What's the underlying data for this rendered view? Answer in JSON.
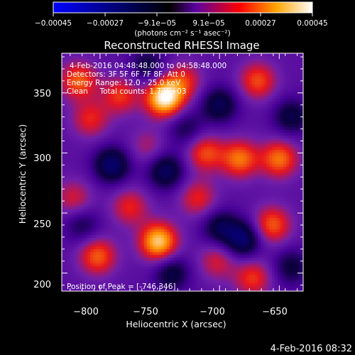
{
  "chart_data": {
    "type": "heatmap",
    "title": "Reconstructed RHESSI Image",
    "xlabel": "Heliocentric X (arcsec)",
    "ylabel": "Heliocentric Y (arcsec)",
    "xlim": [
      -832,
      -630
    ],
    "ylim": [
      185,
      383
    ],
    "x_ticks": [
      -800,
      -750,
      -700,
      -650
    ],
    "y_ticks": [
      200,
      250,
      300,
      350
    ],
    "x_tick_labels": [
      "−800",
      "−750",
      "−700",
      "−650"
    ],
    "y_tick_labels": [
      "200",
      "250",
      "300",
      "350"
    ],
    "colorbar": {
      "range": [
        -0.00045,
        0.00045
      ],
      "tick_labels": [
        "−0.00045",
        "−0.00027",
        "−9.1e−05",
        "9.1e−05",
        "0.00027",
        "0.00045"
      ],
      "tick_values": [
        -0.00045,
        -0.00027,
        -9.1e-05,
        9.1e-05,
        0.00027,
        0.00045
      ],
      "unit_label": "(photons cm⁻² s⁻¹ asec⁻²)",
      "colors": [
        "#0000ff",
        "#000000",
        "#5a00a0",
        "#ff0000",
        "#ffa500",
        "#ffffff"
      ]
    },
    "annotations": {
      "time_range": "4-Feb-2016 04:48:48.000 to 04:58:48.000",
      "detectors": "Detectors: 3F 5F 6F 7F 8F, Att 0",
      "energy": "Energy Range: 12.0 - 25.0 keV",
      "clean": "Clean     Total counts: 1.73E+03",
      "peak": "Position of Peak = [-746,346]"
    },
    "sources": [
      {
        "x": -746,
        "y": 346,
        "amp": 1.0
      },
      {
        "x": -751,
        "y": 226,
        "amp": 0.85
      },
      {
        "x": -802,
        "y": 214,
        "amp": 0.55
      },
      {
        "x": -818,
        "y": 360,
        "amp": 0.55
      },
      {
        "x": -808,
        "y": 328,
        "amp": 0.4
      },
      {
        "x": -783,
        "y": 348,
        "amp": 0.45
      },
      {
        "x": -730,
        "y": 360,
        "amp": 0.4
      },
      {
        "x": -712,
        "y": 300,
        "amp": 0.5
      },
      {
        "x": -683,
        "y": 295,
        "amp": 0.6
      },
      {
        "x": -650,
        "y": 295,
        "amp": 0.6
      },
      {
        "x": -668,
        "y": 360,
        "amp": 0.5
      },
      {
        "x": -656,
        "y": 240,
        "amp": 0.55
      },
      {
        "x": -718,
        "y": 262,
        "amp": 0.4
      },
      {
        "x": -702,
        "y": 210,
        "amp": 0.35
      },
      {
        "x": -672,
        "y": 196,
        "amp": 0.45
      },
      {
        "x": -822,
        "y": 262,
        "amp": 0.35
      },
      {
        "x": -775,
        "y": 255,
        "amp": 0.4
      },
      {
        "x": -760,
        "y": 305,
        "amp": 0.25
      },
      {
        "x": -790,
        "y": 290,
        "amp": -0.55
      },
      {
        "x": -745,
        "y": 285,
        "amp": -0.5
      },
      {
        "x": -740,
        "y": 200,
        "amp": -0.4
      },
      {
        "x": -700,
        "y": 340,
        "amp": -0.45
      },
      {
        "x": -700,
        "y": 238,
        "amp": -0.4
      },
      {
        "x": -680,
        "y": 228,
        "amp": -0.55
      },
      {
        "x": -640,
        "y": 330,
        "amp": -0.4
      },
      {
        "x": -760,
        "y": 372,
        "amp": -0.35
      },
      {
        "x": -815,
        "y": 240,
        "amp": -0.3
      },
      {
        "x": -640,
        "y": 205,
        "amp": -0.35
      },
      {
        "x": -728,
        "y": 320,
        "amp": -0.3
      }
    ]
  },
  "footer": {
    "timestamp": "4-Feb-2016 08:32"
  }
}
